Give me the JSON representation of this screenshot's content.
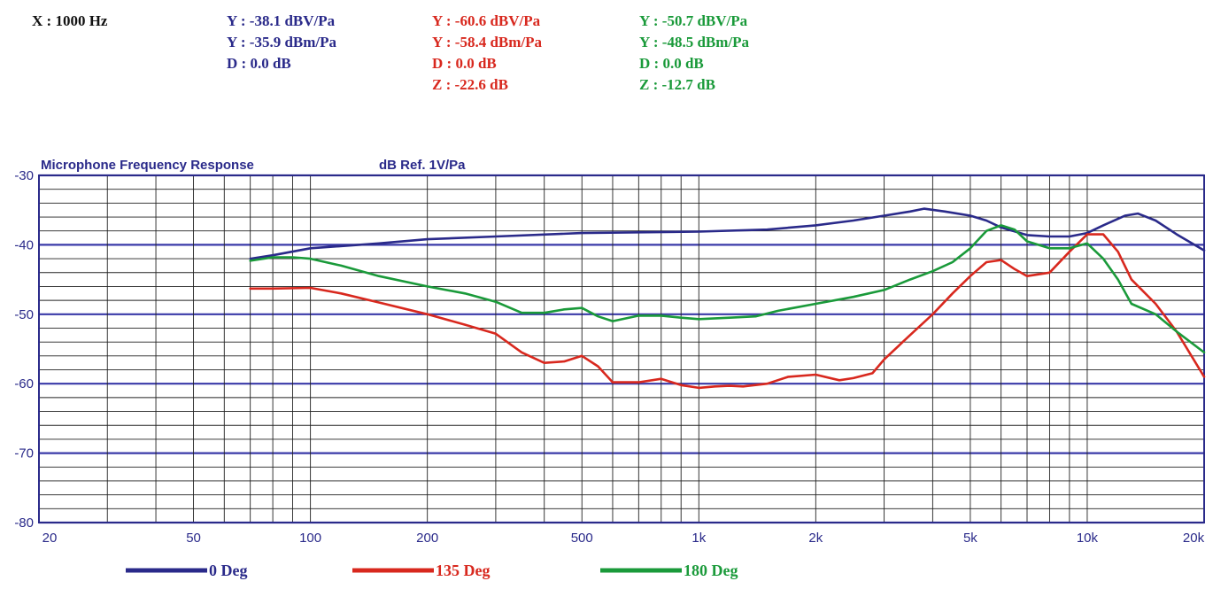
{
  "readout": {
    "x": "X : 1000 Hz",
    "series": [
      {
        "color": "#2a2a8a",
        "lines": [
          "Y : -38.1 dBV/Pa",
          "Y : -35.9 dBm/Pa",
          "D : 0.0 dB"
        ]
      },
      {
        "color": "#d8281e",
        "lines": [
          "Y : -60.6 dBV/Pa",
          "Y : -58.4 dBm/Pa",
          "D : 0.0 dB",
          "Z : -22.6 dB"
        ]
      },
      {
        "color": "#1a9a3a",
        "lines": [
          "Y : -50.7 dBV/Pa",
          "Y : -48.5 dBm/Pa",
          "D : 0.0 dB",
          "Z : -12.7 dB"
        ]
      }
    ]
  },
  "chart_data": {
    "type": "line",
    "title": "Microphone Frequency Response",
    "ylabel": "dB Ref. 1V/Pa",
    "xscale": "log",
    "xlim": [
      20,
      20000
    ],
    "ylim": [
      -80,
      -30
    ],
    "grid": true,
    "legend_position": "bottom",
    "xtick_labels": [
      {
        "value": 20,
        "label": "20"
      },
      {
        "value": 50,
        "label": "50"
      },
      {
        "value": 100,
        "label": "100"
      },
      {
        "value": 200,
        "label": "200"
      },
      {
        "value": 500,
        "label": "500"
      },
      {
        "value": 1000,
        "label": "1k"
      },
      {
        "value": 2000,
        "label": "2k"
      },
      {
        "value": 5000,
        "label": "5k"
      },
      {
        "value": 10000,
        "label": "10k"
      },
      {
        "value": 20000,
        "label": "20k"
      }
    ],
    "ytick_labels": [
      {
        "value": -30,
        "label": "-30"
      },
      {
        "value": -40,
        "label": "-40"
      },
      {
        "value": -50,
        "label": "-50"
      },
      {
        "value": -60,
        "label": "-60"
      },
      {
        "value": -70,
        "label": "-70"
      },
      {
        "value": -80,
        "label": "-80"
      }
    ],
    "series": [
      {
        "name": "0 Deg",
        "color": "#2a2a8a",
        "x": [
          70,
          80,
          100,
          150,
          200,
          300,
          500,
          700,
          1000,
          1500,
          2000,
          2500,
          3000,
          3500,
          3800,
          4300,
          5000,
          5500,
          6000,
          7000,
          8000,
          9000,
          10000,
          11000,
          12500,
          13500,
          15000,
          17000,
          20000
        ],
        "y": [
          -42,
          -41.5,
          -40.5,
          -39.8,
          -39.2,
          -38.8,
          -38.3,
          -38.2,
          -38.1,
          -37.8,
          -37.2,
          -36.5,
          -35.8,
          -35.2,
          -34.8,
          -35.2,
          -35.8,
          -36.5,
          -37.5,
          -38.6,
          -38.8,
          -38.8,
          -38.3,
          -37.2,
          -35.8,
          -35.5,
          -36.5,
          -38.5,
          -40.8
        ]
      },
      {
        "name": "135 Deg",
        "color": "#d8281e",
        "x": [
          70,
          80,
          100,
          120,
          150,
          200,
          250,
          300,
          350,
          400,
          450,
          500,
          550,
          600,
          700,
          800,
          900,
          1000,
          1100,
          1200,
          1300,
          1500,
          1700,
          2000,
          2300,
          2500,
          2800,
          3000,
          3500,
          4000,
          4500,
          5000,
          5500,
          6000,
          6500,
          7000,
          8000,
          9000,
          10000,
          11000,
          12000,
          13000,
          15000,
          17000,
          20000
        ],
        "y": [
          -46.3,
          -46.3,
          -46.2,
          -47,
          -48.3,
          -50,
          -51.5,
          -52.8,
          -55.5,
          -57,
          -56.8,
          -56,
          -57.5,
          -59.8,
          -59.8,
          -59.3,
          -60.2,
          -60.6,
          -60.4,
          -60.3,
          -60.4,
          -60,
          -59,
          -58.7,
          -59.5,
          -59.2,
          -58.5,
          -56.5,
          -53,
          -50,
          -47,
          -44.5,
          -42.5,
          -42.2,
          -43.5,
          -44.5,
          -44,
          -41,
          -38.5,
          -38.5,
          -41,
          -45,
          -48.5,
          -52.5,
          -59
        ]
      },
      {
        "name": "180 Deg",
        "color": "#1a9a3a",
        "x": [
          70,
          80,
          90,
          100,
          120,
          150,
          200,
          250,
          300,
          350,
          400,
          450,
          500,
          550,
          600,
          700,
          800,
          900,
          1000,
          1200,
          1400,
          1600,
          2000,
          2500,
          3000,
          3500,
          4000,
          4500,
          5000,
          5500,
          6000,
          6500,
          7000,
          8000,
          9000,
          10000,
          11000,
          12000,
          13000,
          15000,
          17000,
          20000
        ],
        "y": [
          -42.3,
          -41.8,
          -41.8,
          -42,
          -43,
          -44.5,
          -46,
          -47,
          -48.2,
          -49.8,
          -49.8,
          -49.3,
          -49.1,
          -50.3,
          -51,
          -50.2,
          -50.2,
          -50.5,
          -50.7,
          -50.5,
          -50.3,
          -49.5,
          -48.5,
          -47.5,
          -46.5,
          -45,
          -43.8,
          -42.5,
          -40.5,
          -38,
          -37.2,
          -37.8,
          -39.5,
          -40.5,
          -40.5,
          -39.8,
          -42,
          -45,
          -48.5,
          -50,
          -52.5,
          -55.5
        ]
      }
    ]
  },
  "legend": [
    {
      "label": "0 Deg",
      "color": "#2a2a8a"
    },
    {
      "label": "135 Deg",
      "color": "#d8281e"
    },
    {
      "label": "180 Deg",
      "color": "#1a9a3a"
    }
  ]
}
